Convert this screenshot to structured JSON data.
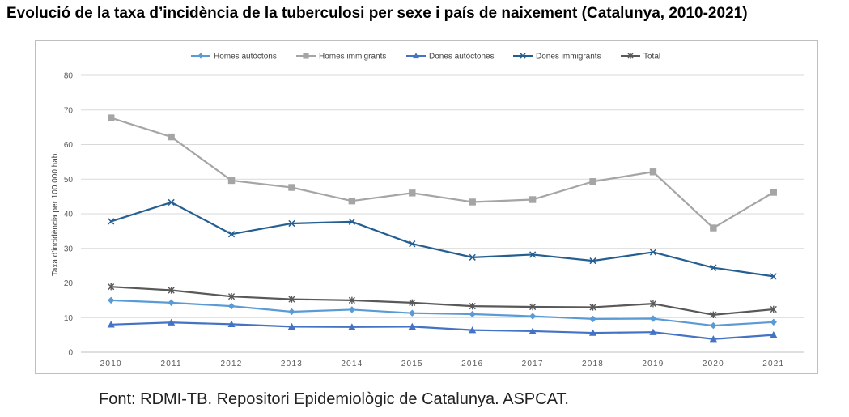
{
  "header": {
    "title": "Evolució de la taxa d’incidència de la tuberculosi per sexe i país de naixement (Catalunya, 2010-2021)"
  },
  "footer": {
    "source": "Font: RDMI-TB. Repositori Epidemiològic de Catalunya. ASPCAT."
  },
  "chart_data": {
    "type": "line",
    "title": "Evolució de la taxa d’incidència de la tuberculosi per sexe i país de naixement (Catalunya, 2010-2021)",
    "xlabel": "",
    "ylabel": "Taxa d'incidència per 100.000 hab.",
    "ylim": [
      0,
      80
    ],
    "yticks": [
      0,
      10,
      20,
      30,
      40,
      50,
      60,
      70,
      80
    ],
    "grid": true,
    "legend_position": "top",
    "categories": [
      "2010",
      "2011",
      "2012",
      "2013",
      "2014",
      "2015",
      "2016",
      "2017",
      "2018",
      "2019",
      "2020",
      "2021"
    ],
    "series": [
      {
        "name": "Homes autòctons",
        "color": "#5b9bd5",
        "marker": "diamond",
        "values": [
          15.0,
          14.3,
          13.3,
          11.7,
          12.3,
          11.3,
          11.0,
          10.4,
          9.6,
          9.7,
          7.7,
          8.7
        ]
      },
      {
        "name": "Homes immigrants",
        "color": "#a5a5a5",
        "marker": "square",
        "values": [
          67.7,
          62.2,
          49.6,
          47.6,
          43.7,
          46.0,
          43.4,
          44.1,
          49.3,
          52.1,
          35.9,
          46.2
        ]
      },
      {
        "name": "Dones autòctones",
        "color": "#4472c4",
        "marker": "triangle",
        "values": [
          8.0,
          8.6,
          8.1,
          7.4,
          7.3,
          7.4,
          6.4,
          6.1,
          5.6,
          5.8,
          3.8,
          5.0
        ]
      },
      {
        "name": "Dones immigrants",
        "color": "#255e91",
        "marker": "x",
        "values": [
          37.8,
          43.3,
          34.1,
          37.2,
          37.7,
          31.3,
          27.4,
          28.2,
          26.4,
          28.9,
          24.4,
          21.9
        ]
      },
      {
        "name": "Total",
        "color": "#595959",
        "marker": "star",
        "values": [
          18.9,
          17.9,
          16.1,
          15.3,
          15.0,
          14.3,
          13.3,
          13.1,
          13.0,
          14.0,
          10.8,
          12.4
        ]
      }
    ]
  }
}
